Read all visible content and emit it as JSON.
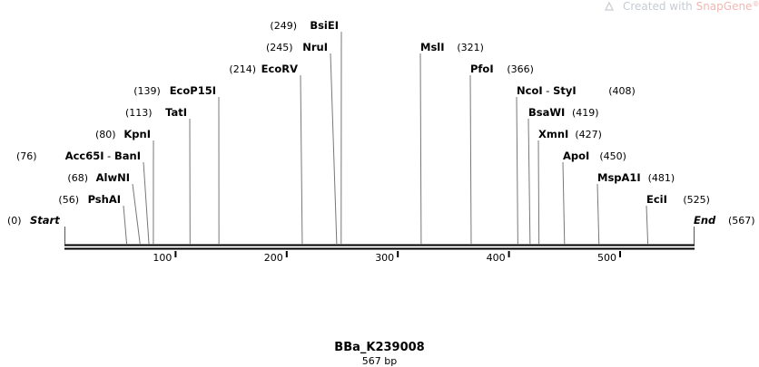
{
  "watermark": {
    "prefix": "Created with ",
    "brand": "SnapGene",
    "mark": "®"
  },
  "map": {
    "name": "BBa_K239008",
    "length_label": "567 bp",
    "length": 567,
    "ticks": [
      100,
      200,
      300,
      400,
      500
    ],
    "start": {
      "pos": "(0)",
      "name": "Start"
    },
    "end": {
      "pos": "(567)",
      "name": "End"
    },
    "sites": [
      {
        "name": "PshAI",
        "pos": "(56)",
        "cut": 56,
        "tier": 1,
        "side": "left",
        "line_top_tier": 1
      },
      {
        "name": "AlwNI",
        "pos": "(68)",
        "cut": 68,
        "tier": 2,
        "side": "left"
      },
      {
        "name": "Acc65I",
        "name2": "BanI",
        "pos": "(76)",
        "cut": 76,
        "tier": 3,
        "side": "left"
      },
      {
        "name": "KpnI",
        "pos": "(80)",
        "cut": 80,
        "tier": 4,
        "side": "left"
      },
      {
        "name": "TatI",
        "pos": "(113)",
        "cut": 113,
        "tier": 5,
        "side": "left"
      },
      {
        "name": "EcoP15I",
        "pos": "(139)",
        "cut": 139,
        "tier": 6,
        "side": "left"
      },
      {
        "name": "EcoRV",
        "pos": "(214)",
        "cut": 214,
        "tier": 7,
        "side": "left"
      },
      {
        "name": "NruI",
        "pos": "(245)",
        "cut": 245,
        "tier": 8,
        "side": "left"
      },
      {
        "name": "BsiEI",
        "pos": "(249)",
        "cut": 249,
        "tier": 9,
        "side": "left"
      },
      {
        "name": "MslI",
        "pos": "(321)",
        "cut": 321,
        "tier": 8,
        "side": "right"
      },
      {
        "name": "PfoI",
        "pos": "(366)",
        "cut": 366,
        "tier": 7,
        "side": "right"
      },
      {
        "name": "NcoI",
        "name2": "StyI",
        "pos": "(408)",
        "cut": 408,
        "tier": 6,
        "side": "right"
      },
      {
        "name": "BsaWI",
        "pos": "(419)",
        "cut": 419,
        "tier": 5,
        "side": "right"
      },
      {
        "name": "XmnI",
        "pos": "(427)",
        "cut": 427,
        "tier": 4,
        "side": "right"
      },
      {
        "name": "ApoI",
        "pos": "(450)",
        "cut": 450,
        "tier": 3,
        "side": "right"
      },
      {
        "name": "MspA1I",
        "pos": "(481)",
        "cut": 481,
        "tier": 2,
        "side": "right"
      },
      {
        "name": "EciI",
        "pos": "(525)",
        "cut": 525,
        "tier": 1,
        "side": "right"
      }
    ]
  }
}
